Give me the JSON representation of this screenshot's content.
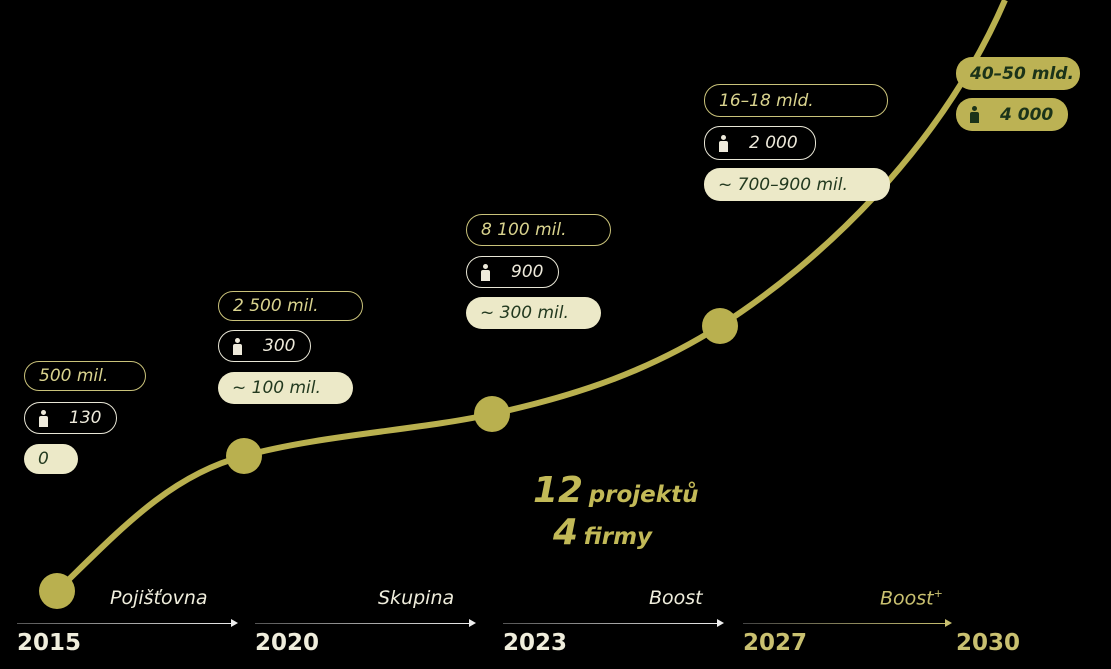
{
  "milestones": [
    {
      "year": "2015",
      "revenue": "500 mil.",
      "employees": "130",
      "profit": "0"
    },
    {
      "year": "2020",
      "revenue": "2 500 mil.",
      "employees": "300",
      "profit": "~ 100 mil."
    },
    {
      "year": "2023",
      "revenue": "8 100 mil.",
      "employees": "900",
      "profit": "~ 300 mil."
    },
    {
      "year": "2027",
      "revenue": "16–18 mld.",
      "employees": "2 000",
      "profit": "~ 700–900 mil."
    },
    {
      "year": "2030",
      "revenue": "40–50 mld.",
      "employees": "4 000"
    }
  ],
  "center": {
    "projects_num": "12",
    "projects_label": "projektů",
    "firms_num": "4",
    "firms_label": "firmy"
  },
  "phases": [
    "Pojišťovna",
    "Skupina",
    "Boost",
    "Boost",
    "+"
  ],
  "icons": {
    "employees": "person-icon"
  },
  "colors": {
    "curve": "#b9b04f",
    "profit_fill": "#ece9c8",
    "highlight_fill": "#bcb254"
  }
}
